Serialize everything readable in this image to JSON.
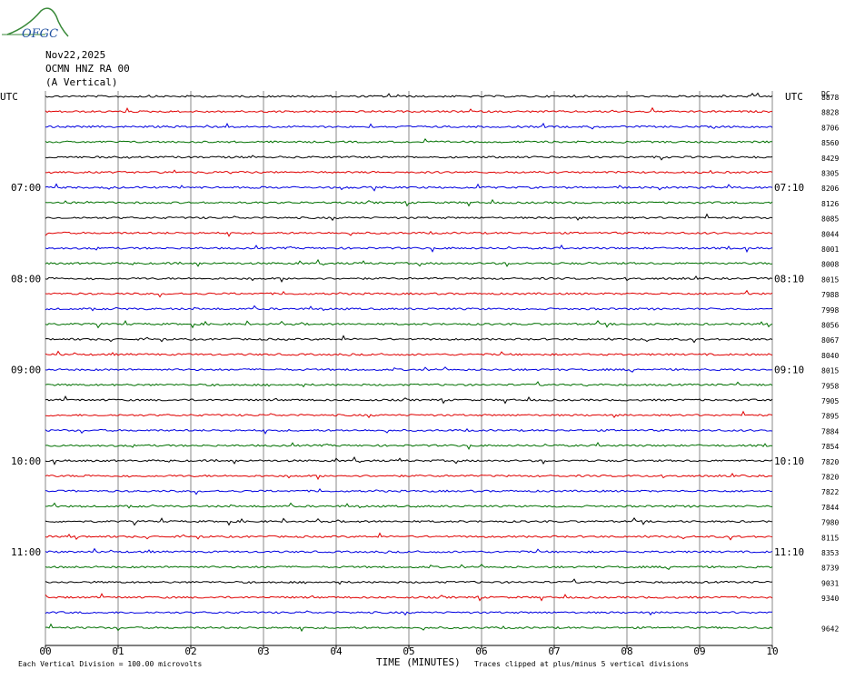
{
  "logo": "OFGC",
  "header": {
    "date": "Nov22,2025",
    "station": "OCMN HNZ RA 00",
    "component": "(A Vertical)"
  },
  "left_labels": {
    "tz": "UTC",
    "hours": [
      "07:00",
      "08:00",
      "09:00",
      "10:00",
      "11:00"
    ]
  },
  "right_labels": {
    "tz": "UTC",
    "hours": [
      "07:10",
      "08:10",
      "09:10",
      "10:10",
      "11:10"
    ]
  },
  "dc": {
    "title": "DC",
    "values": [
      8878,
      8828,
      8706,
      8560,
      8429,
      8305,
      8206,
      8126,
      8085,
      8044,
      8001,
      8008,
      8015,
      7988,
      7998,
      8056,
      8067,
      8040,
      8015,
      7958,
      7905,
      7895,
      7884,
      7854,
      7820,
      7820,
      7822,
      7844,
      7980,
      8115,
      8353,
      8739,
      9031,
      9340,
      9642
    ]
  },
  "x_axis": {
    "label": "TIME (MINUTES)",
    "ticks": [
      {
        "value": 0,
        "label": "00"
      },
      {
        "value": 1,
        "label": "01"
      },
      {
        "value": 2,
        "label": "02"
      },
      {
        "value": 3,
        "label": "03"
      },
      {
        "value": 4,
        "label": "04"
      },
      {
        "value": 5,
        "label": "05"
      },
      {
        "value": 6,
        "label": "06"
      },
      {
        "value": 7,
        "label": "07"
      },
      {
        "value": 8,
        "label": "08"
      },
      {
        "value": 9,
        "label": "09"
      },
      {
        "value": 10,
        "label": "10"
      }
    ]
  },
  "trace_colors": [
    "#000000",
    "#e00000",
    "#0000e0",
    "#007000"
  ],
  "footer": {
    "scale": "Each Vertical Division =  100.00 microvolts",
    "clip": "Traces clipped at plus/minus 5 vertical divisions"
  }
}
